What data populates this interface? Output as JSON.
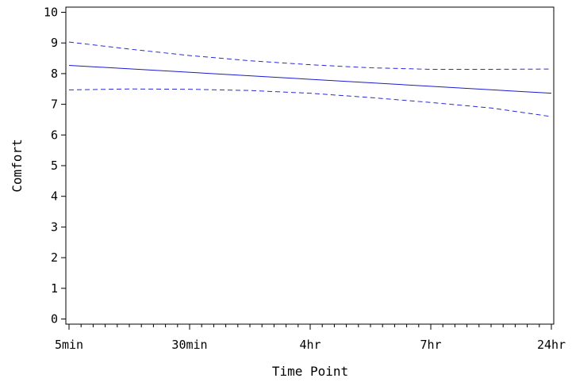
{
  "chart_data": {
    "type": "line",
    "xlabel": "Time Point",
    "ylabel": "Comfort",
    "x_categories": [
      "5min",
      "30min",
      "4hr",
      "7hr",
      "24hr"
    ],
    "x_minor_ticks_per_interval": 9,
    "ylim": [
      0,
      10
    ],
    "yticks": [
      0,
      1,
      2,
      3,
      4,
      5,
      6,
      7,
      8,
      9,
      10
    ],
    "grid": false,
    "legend": "none",
    "series": [
      {
        "role": "estimate",
        "style": "solid",
        "color": "#1a1acc",
        "x": [
          0,
          4
        ],
        "y": [
          8.27,
          7.36
        ]
      },
      {
        "role": "upper-bound",
        "style": "dashed",
        "color": "#2a2ad6",
        "x": [
          0,
          0.5,
          1,
          1.5,
          2,
          2.5,
          3,
          3.5,
          4
        ],
        "y": [
          9.03,
          8.8,
          8.59,
          8.42,
          8.29,
          8.19,
          8.14,
          8.14,
          8.15
        ]
      },
      {
        "role": "lower-bound",
        "style": "dashed",
        "color": "#2a2ad6",
        "x": [
          0,
          0.5,
          1,
          1.5,
          2,
          2.5,
          3,
          3.5,
          4
        ],
        "y": [
          7.47,
          7.5,
          7.49,
          7.45,
          7.36,
          7.22,
          7.06,
          6.88,
          6.6
        ]
      }
    ]
  }
}
